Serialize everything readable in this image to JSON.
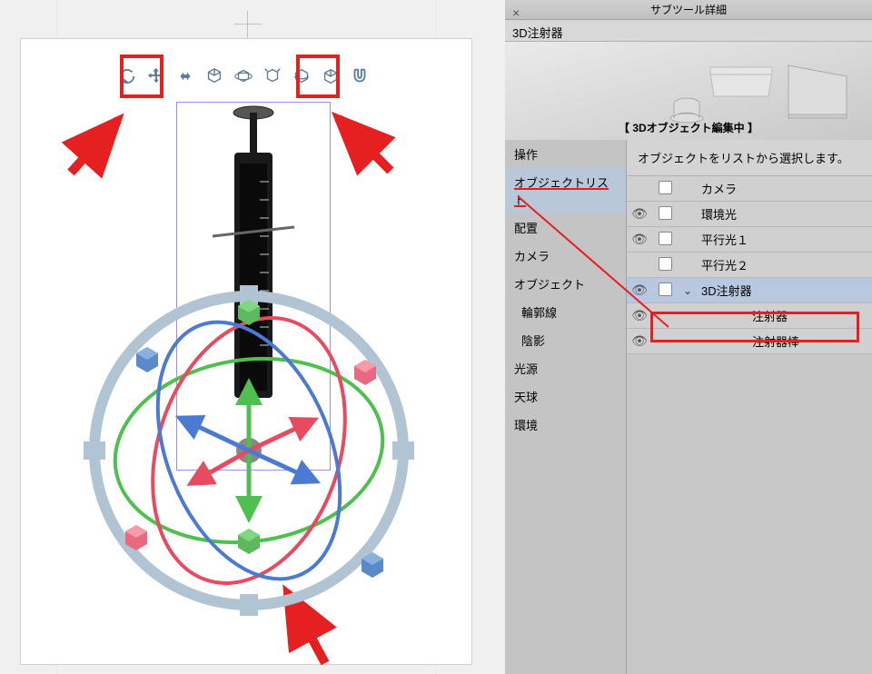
{
  "panel": {
    "header": "サブツール詳細",
    "title": "3D注射器",
    "status": "【 3Dオブジェクト編集中 】",
    "instruction": "オブジェクトをリストから選択します。"
  },
  "categories": [
    {
      "label": "操作",
      "selected": false,
      "indent": false
    },
    {
      "label": "オブジェクトリスト",
      "selected": true,
      "indent": false
    },
    {
      "label": "配置",
      "selected": false,
      "indent": false
    },
    {
      "label": "カメラ",
      "selected": false,
      "indent": false
    },
    {
      "label": "オブジェクト",
      "selected": false,
      "indent": false
    },
    {
      "label": "輪郭線",
      "selected": false,
      "indent": true
    },
    {
      "label": "陰影",
      "selected": false,
      "indent": true
    },
    {
      "label": "光源",
      "selected": false,
      "indent": false
    },
    {
      "label": "天球",
      "selected": false,
      "indent": false
    },
    {
      "label": "環境",
      "selected": false,
      "indent": false
    }
  ],
  "objects": [
    {
      "name": "カメラ",
      "visible": false,
      "checkbox": true,
      "expand": "",
      "selected": false,
      "child": false
    },
    {
      "name": "環境光",
      "visible": true,
      "checkbox": true,
      "expand": "",
      "selected": false,
      "child": false
    },
    {
      "name": "平行光１",
      "visible": true,
      "checkbox": true,
      "expand": "",
      "selected": false,
      "child": false
    },
    {
      "name": "平行光２",
      "visible": false,
      "checkbox": true,
      "expand": "",
      "selected": false,
      "child": false
    },
    {
      "name": "3D注射器",
      "visible": true,
      "checkbox": true,
      "expand": "⌄",
      "selected": true,
      "child": false
    },
    {
      "name": "注射器",
      "visible": true,
      "checkbox": false,
      "expand": "",
      "selected": false,
      "child": true
    },
    {
      "name": "注射器棒",
      "visible": true,
      "checkbox": false,
      "expand": "",
      "selected": false,
      "child": true
    }
  ],
  "colors": {
    "highlight": "#e62020",
    "toolbar_icon": "#5a7a9a",
    "gizmo_x": "#e84a5f",
    "gizmo_y": "#4ec04e",
    "gizmo_z": "#4a7ad4",
    "gizmo_ring": "#b0c4d4",
    "cube_pink": "#e86a80",
    "cube_green": "#5eb85e",
    "cube_blue": "#5a8ac8"
  }
}
